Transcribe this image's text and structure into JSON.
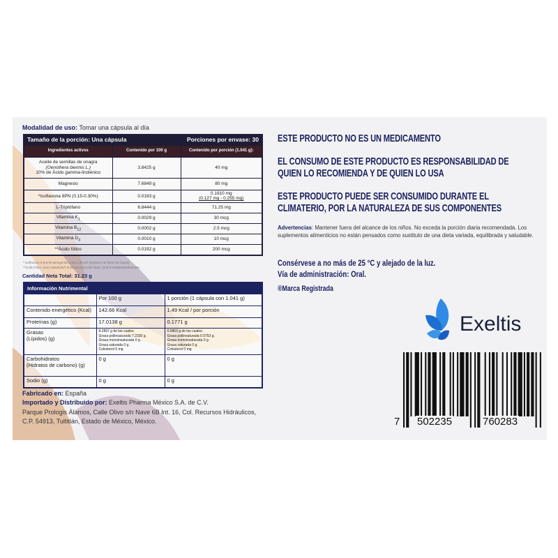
{
  "usage": {
    "label": "Modalidad de uso:",
    "value": "Tomar una cápsula al día"
  },
  "ingredients_table": {
    "serving_size": "Tamaño de la porción: Una cápsula",
    "servings": "Porciones por envase: 30",
    "columns": [
      "Ingredientes activos",
      "Contenido por 100 g",
      "Contenido por porción (1.041 g):"
    ],
    "rows": [
      {
        "name": "Aceite de semillas de onagra",
        "name2": "(Oenothera biennis L.)",
        "name3": "10% de Ácido gamma-linolénico",
        "per100": "3.8425 g",
        "per_serving": "40 mg"
      },
      {
        "name": "Magnesio",
        "per100": "7.6849 g",
        "per_serving": "80 mg"
      },
      {
        "name": "*Isoflavona 8PN (0.15-0.30%)",
        "per100": "0.0183 g",
        "per_serving": "0.1910 mg",
        "per_serving2": "(0.127 mg - 0.255 mg)"
      },
      {
        "name": "L-Triptófano",
        "per100": "6.8444 g",
        "per_serving": "71.25 mg"
      },
      {
        "name": "Vitamina K",
        "sub": "1",
        "per100": "0.0029 g",
        "per_serving": "30 mcg"
      },
      {
        "name": "Vitamina B",
        "sub": "12",
        "per100": "0.0002 g",
        "per_serving": "2.5 mcg"
      },
      {
        "name": "Vitamina D",
        "sub": "3",
        "per100": "0.0010 g",
        "per_serving": "10 mcg"
      },
      {
        "name": "**Ácido fólico",
        "per100": "0.0192 g",
        "per_serving": "200 mcg"
      }
    ],
    "footnotes": [
      "* Isoflavona 8-prenil-naringenina como Lifeno® (Extracto de flores de lúpulo)",
      "**Ácido fólico como Metafolin® la forma activa del folato, [6S]-5-metiltetrahidrofolato"
    ]
  },
  "net_quantity": "Cantidad Neta Total: 31.23 g",
  "nutrition_table": {
    "title": "Información Nutrimental",
    "columns": [
      "",
      "Por 100 g",
      "1 porción (1 cápsula con 1.041 g)"
    ],
    "energy": [
      "Contenido energético (Kcal)",
      "142.66 Kcal",
      "1.49 Kcal / por porción"
    ],
    "protein": [
      "Proteínas (g)",
      "17.0138 g",
      "0.1771 g"
    ],
    "fat": {
      "label1": "Grasas",
      "label2": "(Lípidos) (g)",
      "per100": [
        "8.2897 g de las cuales:",
        "Grasa poliinsaturada 7.2330 g.",
        "Grasa monoinsaturada 0 g.",
        "Grasa saturada 0 g.",
        "Colesterol 0 mg"
      ],
      "per_serving": [
        "0.0863 g de las cuales:",
        "Grasa poliinsaturada 0.0753 g.",
        "Grasa monoinsaturada 0 g.",
        "Grasa saturada 0 g.",
        "Colesterol 0 mg"
      ]
    },
    "carbs": [
      "Carbohidratos",
      "(Hidratos de carbono) (g)",
      "0 g",
      "0 g"
    ],
    "sodium": [
      "Sodio (g)",
      "0 g",
      "0 g"
    ]
  },
  "made_in": {
    "label": "Fabricado en:",
    "value": "España"
  },
  "importer": {
    "label": "Importado y Distribuido por:",
    "value": "Exeltis Pharma México S.A. de C.V.",
    "address1": "Parque Prologis Álamos, Calle Olivo s/n Nave 6B Int. 16, Col. Recursos Hidráulicos,",
    "address2": "C.P. 54913, Tultitlán, Estado de México, México."
  },
  "notices": [
    "ESTE PRODUCTO NO ES UN MEDICAMENTO",
    "EL CONSUMO DE ESTE PRODUCTO ES RESPONSABILIDAD DE",
    "QUIEN LO RECOMIENDA Y DE QUIEN LO USA",
    "ESTE PRODUCTO PUEDE SER CONSUMIDO DURANTE EL",
    "CLIMATERIO, POR LA NATURALEZA DE SUS COMPONENTES"
  ],
  "warnings": {
    "label": "Advertencias",
    "text": ": Mantener fuera del alcance de los niños. No exceda la porción diaria recomendada. Los suplementos alimenticios no están pensados como sustituto de una dieta variada, equilibrada y saludable."
  },
  "storage": "Consérvese a no más de 25 °C y alejado de la luz.",
  "route": "Vía de administración: Oral.",
  "trademark": "®Marca Registrada",
  "brand": {
    "name": "Exeltis",
    "color": "#2a7de1",
    "icon": "butterfly-leaf-logo"
  },
  "barcode": {
    "digits": [
      "7",
      "502235",
      "760283"
    ]
  },
  "colors": {
    "navy": "#1c2260",
    "maroon": "#3a1e28"
  }
}
